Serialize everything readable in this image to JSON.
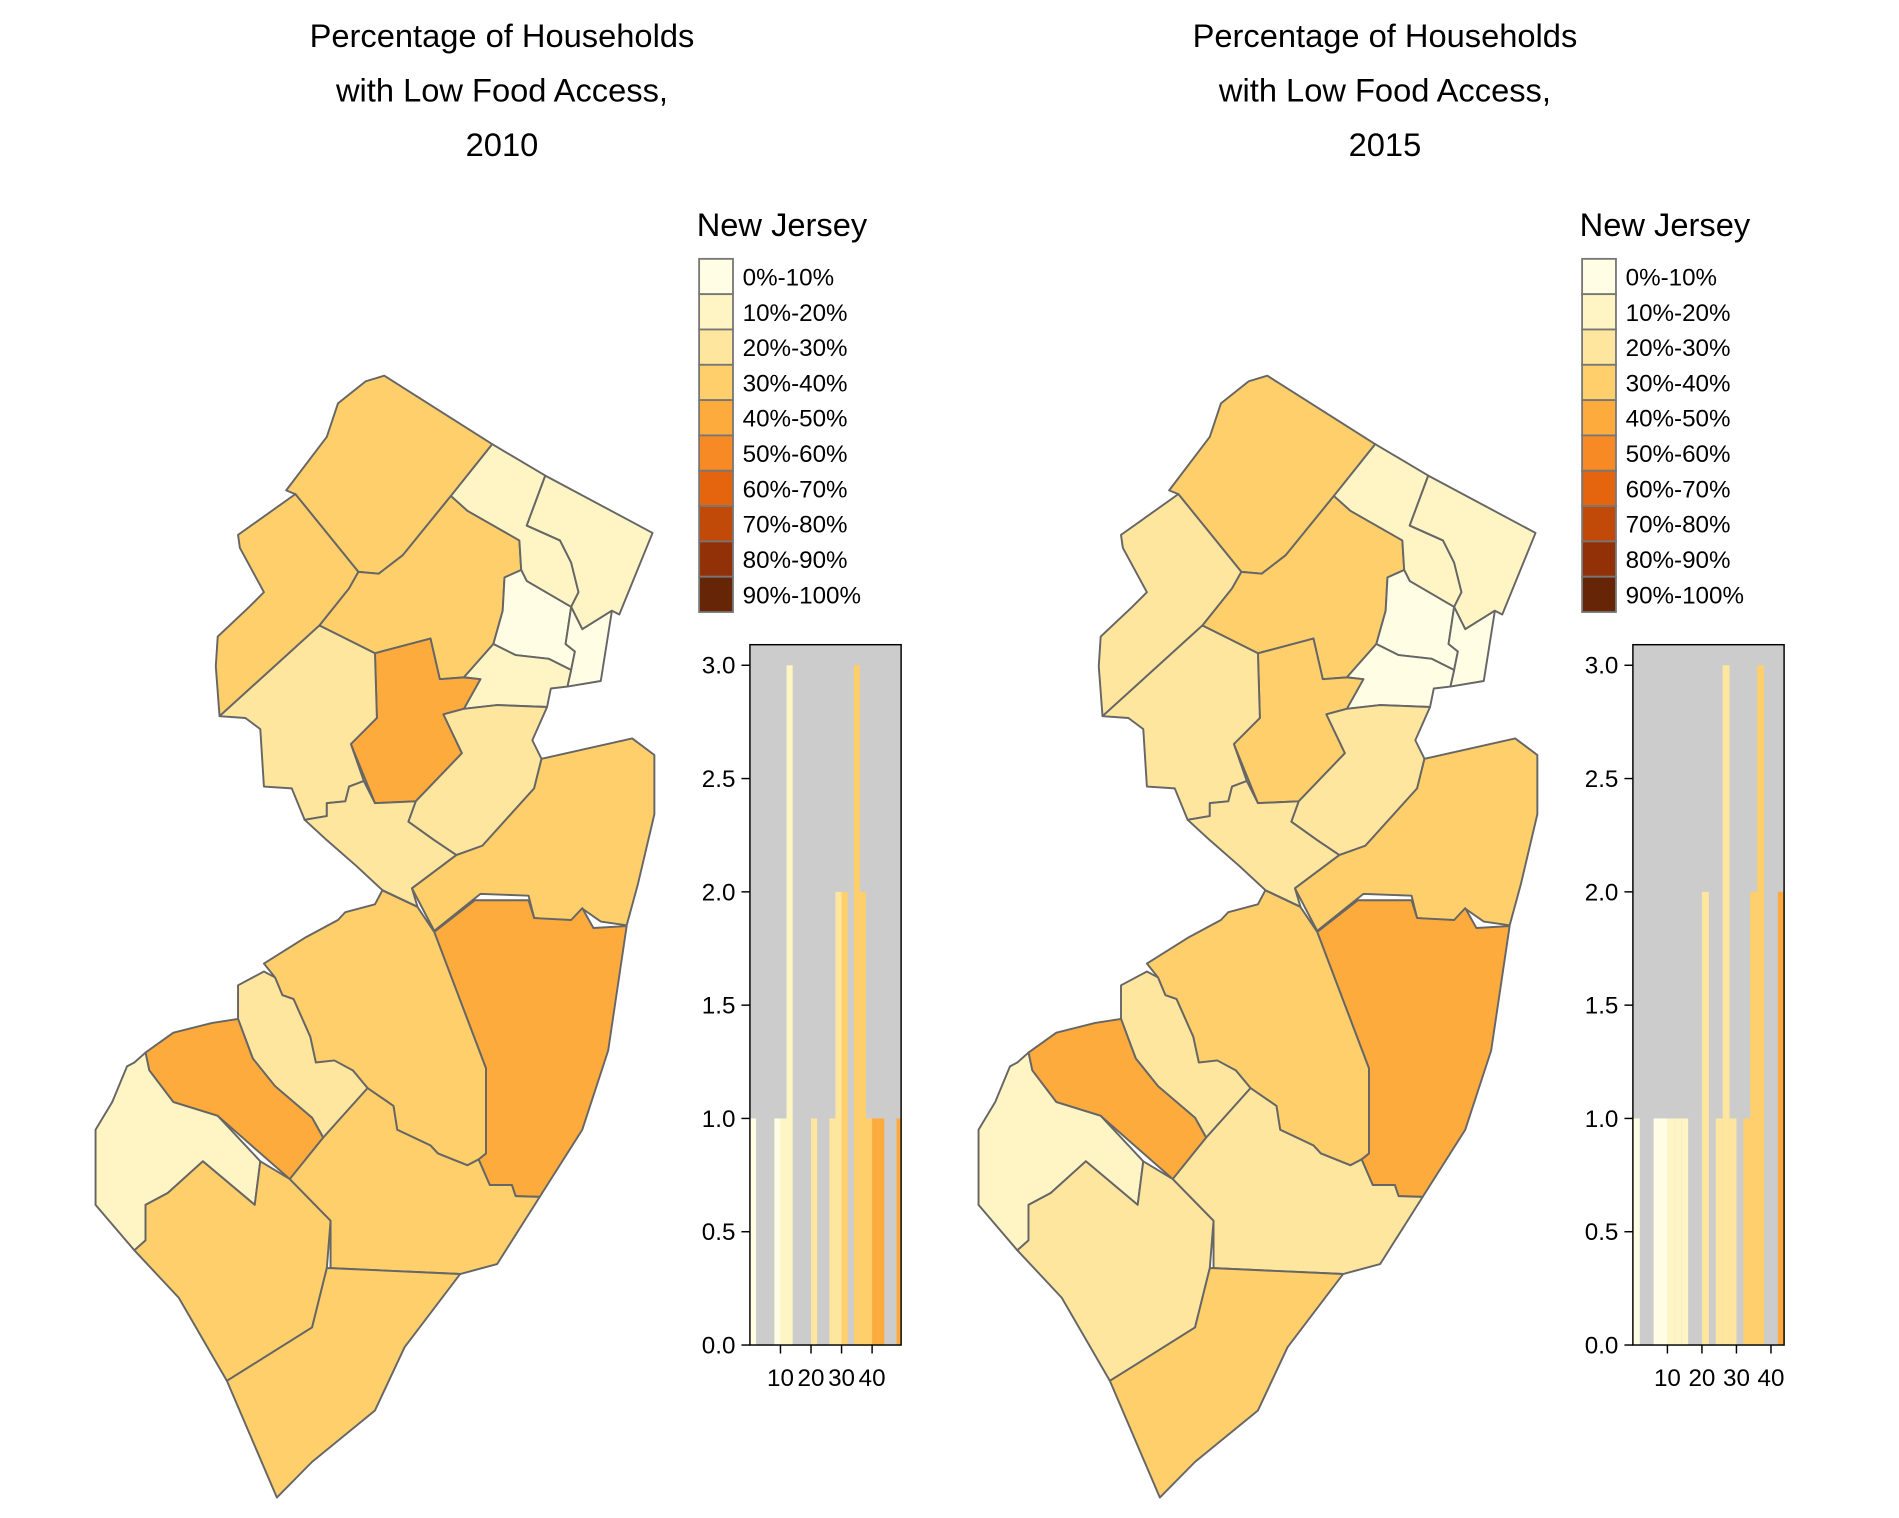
{
  "legend": {
    "title": "New Jersey",
    "labels": [
      "0%-10%",
      "10%-20%",
      "20%-30%",
      "30%-40%",
      "40%-50%",
      "50%-60%",
      "60%-70%",
      "70%-80%",
      "80%-90%",
      "90%-100%"
    ],
    "colors": [
      "#FFFDE3",
      "#FFF5C4",
      "#FEE69E",
      "#FECF6A",
      "#FDAB3C",
      "#F88A25",
      "#E5650F",
      "#C24A08",
      "#923108",
      "#662506"
    ]
  },
  "panel_background": "#CCCCCC",
  "border_color": "#666666",
  "maps": [
    {
      "title_lines": [
        "Percentage of Households",
        "with Low Food Access,",
        "2010"
      ],
      "county_bins": [
        3,
        3,
        3,
        1,
        1,
        0,
        0,
        1,
        4,
        2,
        2,
        2,
        3,
        4,
        3,
        2,
        4,
        1,
        3,
        3,
        3
      ]
    },
    {
      "title_lines": [
        "Percentage of Households",
        "with Low Food Access,",
        "2015"
      ],
      "county_bins": [
        3,
        2,
        3,
        1,
        1,
        0,
        0,
        0,
        3,
        2,
        2,
        2,
        3,
        4,
        3,
        2,
        4,
        1,
        2,
        2,
        3
      ]
    }
  ],
  "chart_data": [
    {
      "type": "bar",
      "title": "Percentage of Households with Low Food Access, 2010",
      "xlim": [
        0,
        49.5
      ],
      "ylim": [
        0,
        3.1
      ],
      "xticks": [
        "10",
        "20",
        "30",
        "40"
      ],
      "yticks": [
        "0.0",
        "0.5",
        "1.0",
        "1.5",
        "2.0",
        "2.5",
        "3.0"
      ],
      "grid": false,
      "bins": [
        {
          "x_start": 0,
          "x_end": 2,
          "count": 1
        },
        {
          "x_start": 8,
          "x_end": 10,
          "count": 1
        },
        {
          "x_start": 10,
          "x_end": 12,
          "count": 1
        },
        {
          "x_start": 12,
          "x_end": 14,
          "count": 3
        },
        {
          "x_start": 20,
          "x_end": 22,
          "count": 1
        },
        {
          "x_start": 26,
          "x_end": 28,
          "count": 1
        },
        {
          "x_start": 28,
          "x_end": 30,
          "count": 2
        },
        {
          "x_start": 30,
          "x_end": 32,
          "count": 2
        },
        {
          "x_start": 34,
          "x_end": 36,
          "count": 3
        },
        {
          "x_start": 36,
          "x_end": 38,
          "count": 2
        },
        {
          "x_start": 38,
          "x_end": 40,
          "count": 1
        },
        {
          "x_start": 40,
          "x_end": 42,
          "count": 1
        },
        {
          "x_start": 42,
          "x_end": 44,
          "count": 1
        },
        {
          "x_start": 48,
          "x_end": 49.5,
          "count": 1
        }
      ]
    },
    {
      "type": "bar",
      "title": "Percentage of Households with Low Food Access, 2015",
      "xlim": [
        0,
        43.8
      ],
      "ylim": [
        0,
        3.1
      ],
      "xticks": [
        "10",
        "20",
        "30",
        "40"
      ],
      "yticks": [
        "0.0",
        "0.5",
        "1.0",
        "1.5",
        "2.0",
        "2.5",
        "3.0"
      ],
      "grid": false,
      "bins": [
        {
          "x_start": 0,
          "x_end": 2,
          "count": 1
        },
        {
          "x_start": 6,
          "x_end": 8,
          "count": 1
        },
        {
          "x_start": 8,
          "x_end": 10,
          "count": 1
        },
        {
          "x_start": 10,
          "x_end": 12,
          "count": 1
        },
        {
          "x_start": 12,
          "x_end": 14,
          "count": 1
        },
        {
          "x_start": 14,
          "x_end": 16,
          "count": 1
        },
        {
          "x_start": 20,
          "x_end": 22,
          "count": 2
        },
        {
          "x_start": 24,
          "x_end": 26,
          "count": 1
        },
        {
          "x_start": 26,
          "x_end": 28,
          "count": 3
        },
        {
          "x_start": 28,
          "x_end": 30,
          "count": 1
        },
        {
          "x_start": 32,
          "x_end": 34,
          "count": 1
        },
        {
          "x_start": 34,
          "x_end": 36,
          "count": 2
        },
        {
          "x_start": 36,
          "x_end": 38,
          "count": 3
        },
        {
          "x_start": 42,
          "x_end": 44,
          "count": 2
        }
      ]
    }
  ]
}
